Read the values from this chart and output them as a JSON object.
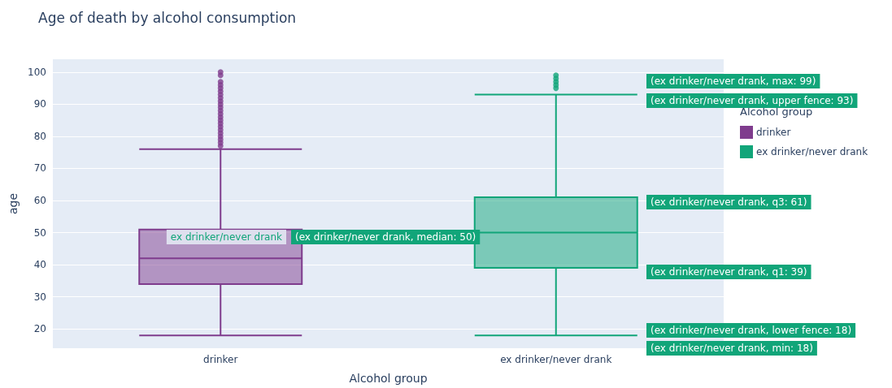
{
  "chart_data": {
    "type": "box",
    "title": "Age of death by alcohol consumption",
    "xlabel": "Alcohol group",
    "ylabel": "age",
    "legend_title": "Alcohol group",
    "categories": [
      "drinker",
      "ex drinker/never drank"
    ],
    "series": [
      {
        "name": "drinker",
        "color": "#7f3c8d",
        "boxes": [
          {
            "low": 18,
            "q1": 34,
            "median": 42,
            "q3": 51,
            "high": 76,
            "outliers": [
              77,
              78,
              79,
              80,
              81,
              82,
              83,
              84,
              85,
              86,
              87,
              88,
              89,
              90,
              91,
              92,
              93,
              94,
              95,
              96,
              97,
              99,
              100
            ]
          },
          null
        ]
      },
      {
        "name": "ex drinker/never drank",
        "color": "#11a579",
        "boxes": [
          null,
          {
            "low": 18,
            "q1": 39,
            "median": 50,
            "q3": 61,
            "high": 93,
            "outliers": [
              95,
              96,
              97,
              98,
              99
            ]
          }
        ]
      }
    ],
    "ylim": [
      14,
      104
    ],
    "yticks": [
      20,
      30,
      40,
      50,
      60,
      70,
      80,
      90,
      100
    ],
    "grid": "y",
    "legend": "top right",
    "annotations": [
      "(ex drinker/never drank, max: 99)",
      "(ex drinker/never drank, upper fence: 93)",
      "(ex drinker/never drank, q3: 61)",
      "ex drinker/never drank",
      "(ex drinker/never drank, median: 50)",
      "(ex drinker/never drank, q1: 39)",
      "(ex drinker/never drank, lower fence: 18)",
      "(ex drinker/never drank, min: 18)"
    ]
  }
}
